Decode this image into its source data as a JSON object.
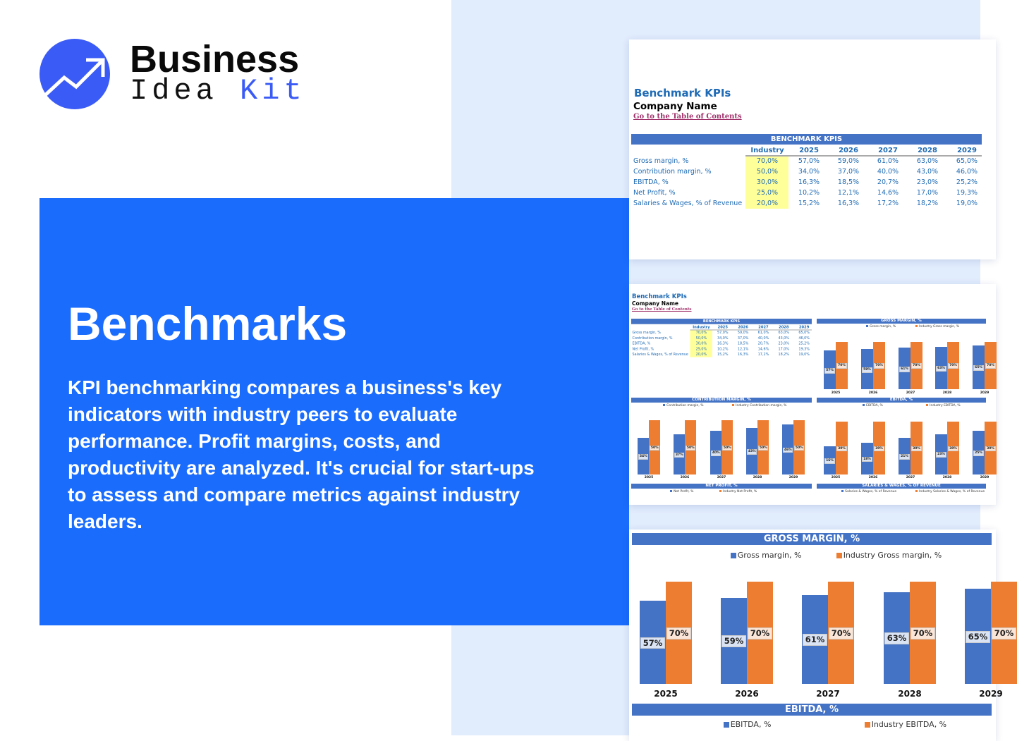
{
  "brand": {
    "word1": "Business",
    "word2a": "Idea",
    "word2b": "Kit",
    "icon": "trend-up-arrow-icon",
    "colors": {
      "brand": "#3b5bf6",
      "hero": "#1a6cfd"
    }
  },
  "hero": {
    "title": "Benchmarks",
    "body": "KPI benchmarking compares a business's key indicators with industry peers to evaluate performance. Profit margins, costs, and productivity are analyzed. It's crucial for start-ups to assess and compare metrics against industry leaders."
  },
  "sheet": {
    "title": "Benchmark KPIs",
    "company": "Company Name",
    "toc_link": "Go to the Table of Contents"
  },
  "kpi_table": {
    "title": "BENCHMARK KPIS",
    "columns": [
      "Industry",
      "2025",
      "2026",
      "2027",
      "2028",
      "2029"
    ],
    "rows": [
      {
        "label": "Gross margin, %",
        "values": [
          "70,0%",
          "57,0%",
          "59,0%",
          "61,0%",
          "63,0%",
          "65,0%"
        ]
      },
      {
        "label": "Contribution margin, %",
        "values": [
          "50,0%",
          "34,0%",
          "37,0%",
          "40,0%",
          "43,0%",
          "46,0%"
        ]
      },
      {
        "label": "EBITDA, %",
        "values": [
          "30,0%",
          "16,3%",
          "18,5%",
          "20,7%",
          "23,0%",
          "25,2%"
        ]
      },
      {
        "label": "Net Profit, %",
        "values": [
          "25,0%",
          "10,2%",
          "12,1%",
          "14,6%",
          "17,0%",
          "19,3%"
        ]
      },
      {
        "label": "Salaries & Wages, % of Revenue",
        "values": [
          "20,0%",
          "15,2%",
          "16,3%",
          "17,2%",
          "18,2%",
          "19,0%"
        ]
      }
    ]
  },
  "colors": {
    "company": "#4472c4",
    "industry": "#ed7d31",
    "highlight": "#ffff99"
  },
  "chart_data": [
    {
      "type": "bar",
      "title": "GROSS MARGIN, %",
      "categories": [
        "2025",
        "2026",
        "2027",
        "2028",
        "2029"
      ],
      "series": [
        {
          "name": "Gross margin, %",
          "values": [
            57,
            59,
            61,
            63,
            65
          ]
        },
        {
          "name": "Industry Gross margin, %",
          "values": [
            70,
            70,
            70,
            70,
            70
          ]
        }
      ]
    },
    {
      "type": "bar",
      "title": "CONTRIBUTION MARGIN, %",
      "categories": [
        "2025",
        "2026",
        "2027",
        "2028",
        "2029"
      ],
      "series": [
        {
          "name": "Contribution margin, %",
          "values": [
            34,
            37,
            40,
            43,
            46
          ]
        },
        {
          "name": "Industry Contribution margin, %",
          "values": [
            50,
            50,
            50,
            50,
            50
          ]
        }
      ]
    },
    {
      "type": "bar",
      "title": "EBITDA, %",
      "categories": [
        "2025",
        "2026",
        "2027",
        "2028",
        "2029"
      ],
      "series": [
        {
          "name": "EBITDA, %",
          "values": [
            16,
            18,
            21,
            23,
            25
          ]
        },
        {
          "name": "Industry EBITDA, %",
          "values": [
            30,
            30,
            30,
            30,
            30
          ]
        }
      ]
    },
    {
      "type": "bar",
      "title": "NET PROFIT, %",
      "categories": [],
      "series": [
        {
          "name": "Net Profit, %",
          "values": []
        },
        {
          "name": "Industry Net Profit, %",
          "values": []
        }
      ]
    },
    {
      "type": "bar",
      "title": "SALARIES & WAGES, % OF REVENUE",
      "categories": [],
      "series": [
        {
          "name": "Salaries & Wages, % of Revenue",
          "values": []
        },
        {
          "name": "Industry Salaries & Wages, % of Revenue",
          "values": []
        }
      ]
    }
  ]
}
